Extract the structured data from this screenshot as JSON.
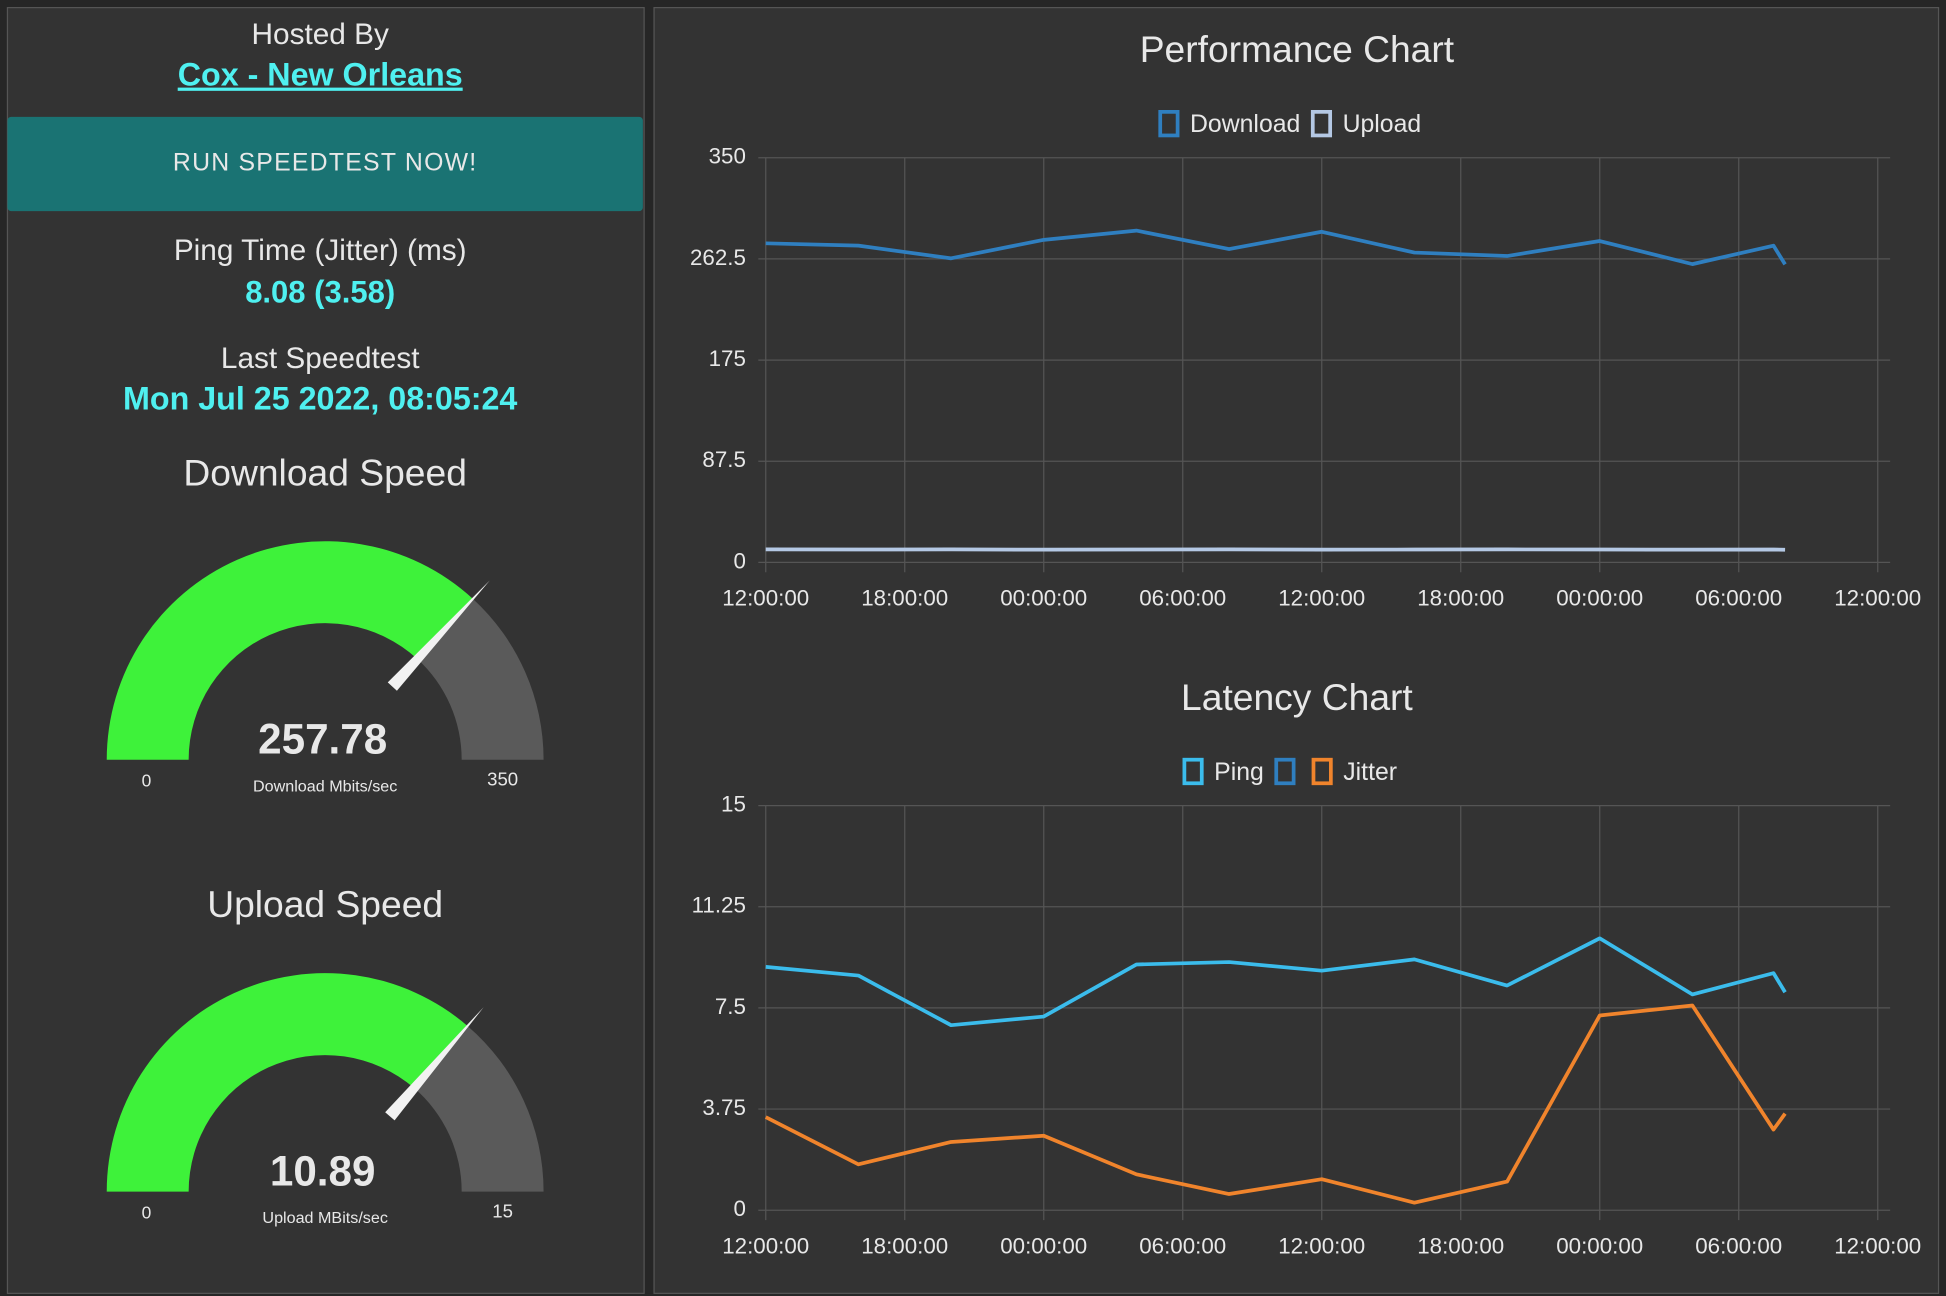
{
  "header": {
    "hosted_by": "Hosted By",
    "server": "Cox - New Orleans"
  },
  "button": "RUN SPEEDTEST NOW!",
  "ping": {
    "label": "Ping Time (Jitter) (ms)",
    "value": "8.08 (3.58)"
  },
  "last": {
    "label": "Last Speedtest",
    "value": "Mon Jul 25 2022, 08:05:24"
  },
  "chart_data": [
    {
      "type": "gauge",
      "title": "Download Speed",
      "value": 257.78,
      "ylim": [
        0,
        350
      ],
      "unit": "Download Mbits/sec",
      "color": "#3ef23a",
      "track_color": "#5a5a5a"
    },
    {
      "type": "gauge",
      "title": "Upload Speed",
      "value": 10.89,
      "ylim": [
        0,
        15
      ],
      "unit": "Upload MBits/sec",
      "color": "#3ef23a",
      "track_color": "#5a5a5a"
    },
    {
      "type": "line",
      "title": "Performance Chart",
      "x": [
        0,
        4,
        8,
        12,
        16,
        20,
        24,
        28,
        32,
        36,
        40,
        43.5,
        44
      ],
      "xlim": [
        0,
        48
      ],
      "xticks": [
        {
          "value": 0,
          "label": "12:00:00"
        },
        {
          "value": 6,
          "label": "18:00:00"
        },
        {
          "value": 12,
          "label": "00:00:00"
        },
        {
          "value": 18,
          "label": "06:00:00"
        },
        {
          "value": 24,
          "label": "12:00:00"
        },
        {
          "value": 30,
          "label": "18:00:00"
        },
        {
          "value": 36,
          "label": "00:00:00"
        },
        {
          "value": 42,
          "label": "06:00:00"
        },
        {
          "value": 48,
          "label": "12:00:00"
        }
      ],
      "ylim": [
        0,
        350
      ],
      "yticks": [
        0,
        87.5,
        175,
        262.5,
        350
      ],
      "grid": true,
      "legend": "top",
      "series": [
        {
          "name": "Download",
          "color": "#2f7fc0",
          "values": [
            276,
            274,
            263,
            279,
            287,
            271,
            286,
            268,
            265,
            278,
            258,
            274,
            257.78
          ]
        },
        {
          "name": "Upload",
          "color": "#b4c8e4",
          "values": [
            11.2,
            11.1,
            11.2,
            11.0,
            11.1,
            11.2,
            11.0,
            11.1,
            11.2,
            11.1,
            11.0,
            11.1,
            10.89
          ]
        }
      ]
    },
    {
      "type": "line",
      "title": "Latency Chart",
      "x": [
        0,
        4,
        8,
        12,
        16,
        20,
        24,
        28,
        32,
        36,
        40,
        43.5,
        44
      ],
      "xlim": [
        0,
        48
      ],
      "xticks": [
        {
          "value": 0,
          "label": "12:00:00"
        },
        {
          "value": 6,
          "label": "18:00:00"
        },
        {
          "value": 12,
          "label": "00:00:00"
        },
        {
          "value": 18,
          "label": "06:00:00"
        },
        {
          "value": 24,
          "label": "12:00:00"
        },
        {
          "value": 30,
          "label": "18:00:00"
        },
        {
          "value": 36,
          "label": "00:00:00"
        },
        {
          "value": 42,
          "label": "06:00:00"
        },
        {
          "value": 48,
          "label": "12:00:00"
        }
      ],
      "ylim": [
        0,
        15
      ],
      "yticks": [
        0,
        3.75,
        7.5,
        11.25,
        15
      ],
      "grid": true,
      "legend": "top",
      "series": [
        {
          "name": "Ping",
          "color": "#3bbcec",
          "values": [
            9.02,
            8.7,
            6.86,
            7.18,
            9.11,
            9.2,
            8.88,
            9.3,
            8.33,
            10.08,
            8.0,
            8.79,
            8.08
          ]
        },
        {
          "name": null,
          "color": "#2f7fc0",
          "values": [
            null,
            null,
            null,
            null,
            null,
            null,
            null,
            null,
            null,
            null,
            null,
            null,
            null
          ]
        },
        {
          "name": "Jitter",
          "color": "#f0842c",
          "values": [
            3.45,
            1.7,
            2.53,
            2.76,
            1.33,
            0.6,
            1.15,
            0.28,
            1.06,
            7.22,
            7.59,
            2.99,
            3.58
          ]
        }
      ]
    }
  ]
}
